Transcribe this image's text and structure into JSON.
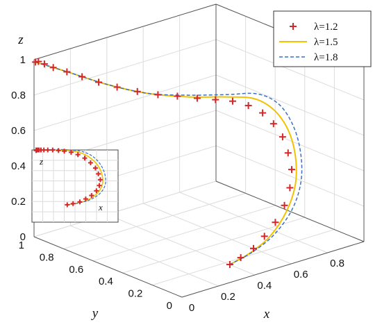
{
  "chart_data": {
    "type": "line3d",
    "xlabel": "x",
    "ylabel": "y",
    "zlabel": "z",
    "xlim": [
      0,
      1
    ],
    "ylim": [
      0,
      1
    ],
    "zlim": [
      0,
      1
    ],
    "x_ticks": [
      "0",
      "0.2",
      "0.4",
      "0.6",
      "0.8"
    ],
    "y_ticks": [
      "0",
      "0.2",
      "0.4",
      "0.6",
      "0.8",
      "1"
    ],
    "z_ticks": [
      "0",
      "0.2",
      "0.4",
      "0.6",
      "0.8",
      "1"
    ],
    "grid": true,
    "legend_position": "top-right",
    "series": [
      {
        "name": "λ=1.2",
        "style": "markers-plus",
        "color": "#d62728",
        "points": [
          [
            0.0,
            0.99,
            0.99
          ],
          [
            0.0,
            0.97,
            1.0
          ],
          [
            0.0,
            0.93,
            1.0
          ],
          [
            0.0,
            0.87,
            1.0
          ],
          [
            0.01,
            0.79,
            1.0
          ],
          [
            0.02,
            0.7,
            1.0
          ],
          [
            0.03,
            0.6,
            1.0
          ],
          [
            0.05,
            0.5,
            1.0
          ],
          [
            0.08,
            0.4,
            1.0
          ],
          [
            0.12,
            0.31,
            1.0
          ],
          [
            0.17,
            0.24,
            1.0
          ],
          [
            0.23,
            0.18,
            0.99
          ],
          [
            0.29,
            0.13,
            0.98
          ],
          [
            0.36,
            0.1,
            0.96
          ],
          [
            0.43,
            0.08,
            0.92
          ],
          [
            0.5,
            0.07,
            0.86
          ],
          [
            0.56,
            0.07,
            0.78
          ],
          [
            0.61,
            0.07,
            0.69
          ],
          [
            0.64,
            0.07,
            0.59
          ],
          [
            0.66,
            0.07,
            0.49
          ],
          [
            0.65,
            0.07,
            0.39
          ],
          [
            0.62,
            0.07,
            0.3
          ],
          [
            0.57,
            0.07,
            0.22
          ],
          [
            0.51,
            0.07,
            0.16
          ],
          [
            0.45,
            0.07,
            0.11
          ],
          [
            0.38,
            0.07,
            0.08
          ],
          [
            0.32,
            0.07,
            0.06
          ]
        ]
      },
      {
        "name": "λ=1.5",
        "style": "solid",
        "color": "#f2c200",
        "points": [
          [
            0.0,
            0.99,
            0.99
          ],
          [
            0.01,
            0.8,
            1.0
          ],
          [
            0.04,
            0.55,
            1.0
          ],
          [
            0.1,
            0.35,
            1.0
          ],
          [
            0.2,
            0.2,
            1.0
          ],
          [
            0.33,
            0.11,
            0.99
          ],
          [
            0.46,
            0.08,
            0.95
          ],
          [
            0.56,
            0.07,
            0.86
          ],
          [
            0.64,
            0.07,
            0.72
          ],
          [
            0.68,
            0.07,
            0.56
          ],
          [
            0.68,
            0.07,
            0.4
          ],
          [
            0.63,
            0.07,
            0.26
          ],
          [
            0.54,
            0.07,
            0.15
          ],
          [
            0.43,
            0.07,
            0.09
          ],
          [
            0.32,
            0.07,
            0.06
          ]
        ]
      },
      {
        "name": "λ=1.8",
        "style": "dashed",
        "color": "#3a6fc4",
        "points": [
          [
            0.0,
            0.99,
            0.99
          ],
          [
            0.01,
            0.8,
            1.0
          ],
          [
            0.04,
            0.55,
            1.0
          ],
          [
            0.1,
            0.35,
            1.0
          ],
          [
            0.2,
            0.2,
            1.01
          ],
          [
            0.34,
            0.11,
            1.0
          ],
          [
            0.48,
            0.08,
            0.97
          ],
          [
            0.59,
            0.07,
            0.88
          ],
          [
            0.67,
            0.07,
            0.73
          ],
          [
            0.71,
            0.07,
            0.56
          ],
          [
            0.71,
            0.07,
            0.4
          ],
          [
            0.66,
            0.07,
            0.26
          ],
          [
            0.56,
            0.07,
            0.15
          ],
          [
            0.44,
            0.07,
            0.09
          ],
          [
            0.32,
            0.07,
            0.06
          ]
        ]
      }
    ],
    "inset": {
      "xlabel": "x",
      "zlabel": "z",
      "view": "x-z projection",
      "grid": true
    }
  }
}
